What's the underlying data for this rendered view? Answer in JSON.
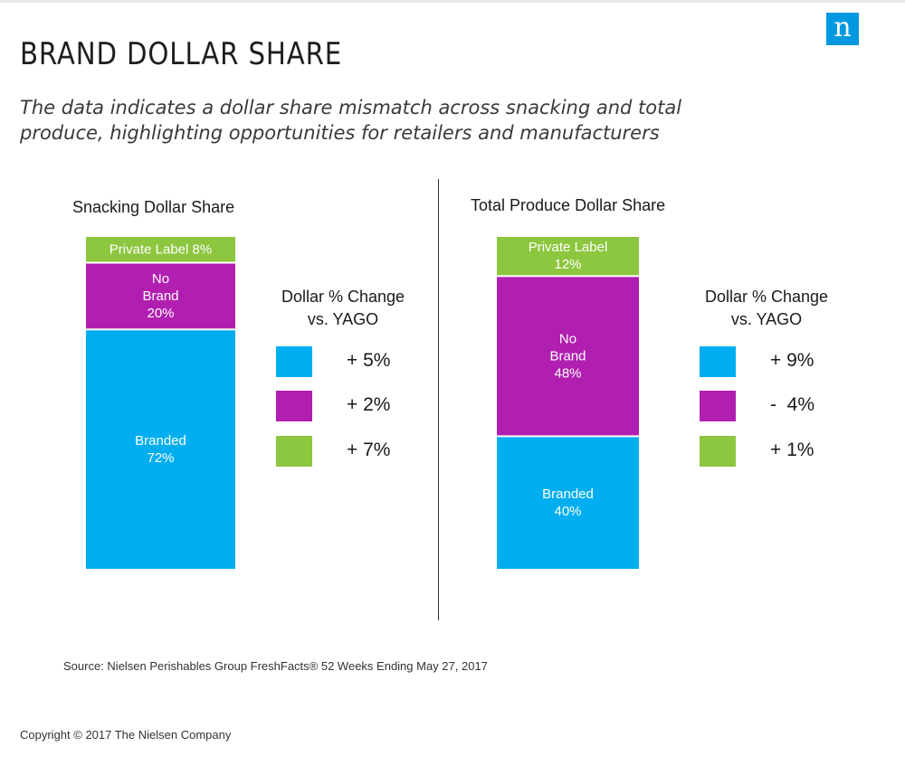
{
  "page": {
    "logo": "n",
    "title": "BRAND DOLLAR SHARE",
    "subtitle": "The data indicates a dollar share mismatch across snacking and total produce, highlighting opportunities for retailers and manufacturers",
    "source": "Source: Nielsen Perishables Group FreshFacts® 52 Weeks Ending May 27, 2017",
    "copyright": "Copyright © 2017 The Nielsen Company"
  },
  "colors": {
    "branded": "#00aeef",
    "no_brand": "#b11fb0",
    "private_label": "#8dc63f"
  },
  "chart_data": [
    {
      "type": "bar",
      "stacked": true,
      "title": "Snacking Dollar Share",
      "unit": "%",
      "segments": [
        {
          "name": "Branded",
          "value": 72,
          "label_lines": [
            "Branded",
            "72%"
          ],
          "color": "#00aeef"
        },
        {
          "name": "No Brand",
          "value": 20,
          "label_lines": [
            "No",
            "Brand",
            "20%"
          ],
          "color": "#b11fb0"
        },
        {
          "name": "Private Label",
          "value": 8,
          "label_lines": [
            "Private Label 8%"
          ],
          "color": "#8dc63f"
        }
      ],
      "legend": {
        "title_lines": [
          "Dollar % Change",
          "vs. YAGO"
        ],
        "items": [
          {
            "series": "Branded",
            "change": 5,
            "label": "+ 5%",
            "color": "#00aeef"
          },
          {
            "series": "No Brand",
            "change": 2,
            "label": "+ 2%",
            "color": "#b11fb0"
          },
          {
            "series": "Private Label",
            "change": 7,
            "label": "+ 7%",
            "color": "#8dc63f"
          }
        ]
      }
    },
    {
      "type": "bar",
      "stacked": true,
      "title": "Total Produce Dollar Share",
      "unit": "%",
      "segments": [
        {
          "name": "Branded",
          "value": 40,
          "label_lines": [
            "Branded",
            "40%"
          ],
          "color": "#00aeef"
        },
        {
          "name": "No Brand",
          "value": 48,
          "label_lines": [
            "No",
            "Brand",
            "48%"
          ],
          "color": "#b11fb0"
        },
        {
          "name": "Private Label",
          "value": 12,
          "label_lines": [
            "Private Label",
            "12%"
          ],
          "color": "#8dc63f"
        }
      ],
      "legend": {
        "title_lines": [
          "Dollar % Change",
          "vs. YAGO"
        ],
        "items": [
          {
            "series": "Branded",
            "change": 9,
            "label": "+ 9%",
            "color": "#00aeef"
          },
          {
            "series": "No Brand",
            "change": -4,
            "label": "-  4%",
            "color": "#b11fb0"
          },
          {
            "series": "Private Label",
            "change": 1,
            "label": "+ 1%",
            "color": "#8dc63f"
          }
        ]
      }
    }
  ]
}
